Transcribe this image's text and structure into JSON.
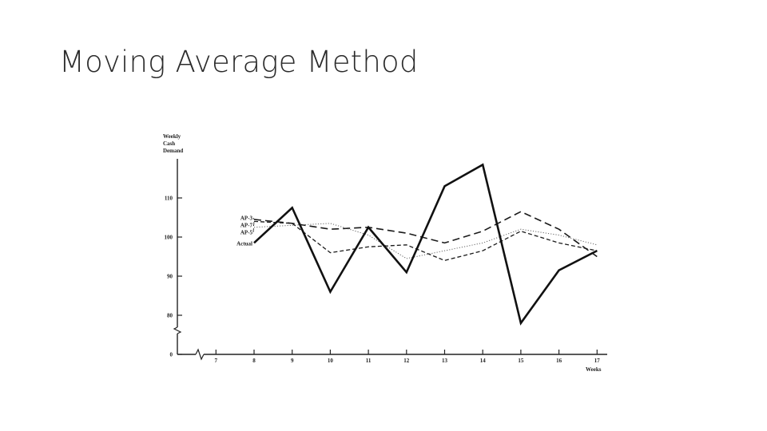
{
  "slide": {
    "title": "Moving Average Method"
  },
  "chart_data": {
    "type": "line",
    "ylabel_lines": [
      "Weekly",
      "Cash",
      "Demand"
    ],
    "xlabel": "Weeks",
    "y_ticks": [
      0,
      80,
      90,
      100,
      110
    ],
    "x_ticks": [
      7,
      8,
      9,
      10,
      11,
      12,
      13,
      14,
      15,
      16,
      17
    ],
    "ylim": [
      78,
      120
    ],
    "axis_break": true,
    "grid": false,
    "legend_placement": "left, at start of lines",
    "series": [
      {
        "name": "AP-3",
        "style": "long-dash",
        "x": [
          8,
          9,
          10,
          11,
          12,
          13,
          14,
          15,
          16,
          17
        ],
        "y": [
          104.5,
          103.5,
          102,
          102.5,
          101,
          98.5,
          101.5,
          106.5,
          102,
          95
        ]
      },
      {
        "name": "AP-7",
        "style": "dotted",
        "x": [
          8,
          9,
          10,
          11,
          12,
          13,
          14,
          15,
          16,
          17
        ],
        "y": [
          102.5,
          103,
          103.5,
          100.5,
          94.5,
          96.5,
          98.5,
          102,
          100.5,
          98
        ]
      },
      {
        "name": "AP-5",
        "style": "short-dash",
        "x": [
          8,
          9,
          10,
          11,
          12,
          13,
          14,
          15,
          16,
          17
        ],
        "y": [
          104,
          103.5,
          96,
          97.5,
          98,
          94,
          96.5,
          101.5,
          98.5,
          96.5
        ]
      },
      {
        "name": "Actual",
        "style": "solid",
        "x": [
          8,
          9,
          10,
          11,
          12,
          13,
          14,
          15,
          16,
          17
        ],
        "y": [
          98.5,
          107.5,
          86,
          102.5,
          91,
          113,
          118.5,
          78,
          91.5,
          96.5
        ]
      }
    ]
  }
}
